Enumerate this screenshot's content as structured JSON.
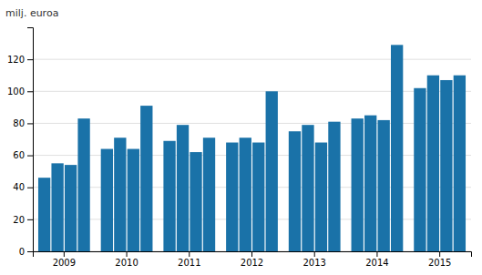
{
  "chart_data": {
    "type": "bar",
    "ylabel": "milj. euroa",
    "categories": [
      "2009",
      "2010",
      "2011",
      "2012",
      "2013",
      "2014",
      "2015"
    ],
    "series": [
      {
        "values": [
          46,
          64,
          69,
          68,
          75,
          83,
          102
        ]
      },
      {
        "values": [
          55,
          71,
          79,
          71,
          79,
          85,
          110
        ]
      },
      {
        "values": [
          54,
          64,
          62,
          68,
          68,
          82,
          107
        ]
      },
      {
        "values": [
          83,
          91,
          71,
          100,
          81,
          129,
          110
        ]
      }
    ],
    "color": "#1a72a8",
    "ylim": [
      0,
      140
    ],
    "yticks": [
      0,
      20,
      40,
      60,
      80,
      100,
      120
    ],
    "grid": true
  }
}
